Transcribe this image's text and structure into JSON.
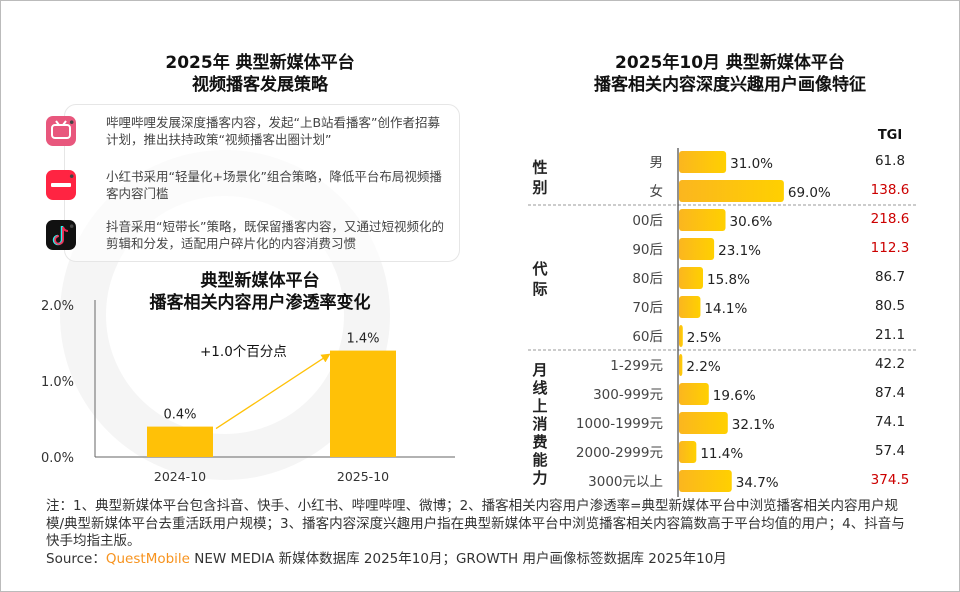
{
  "watermark": "QUEST MOBILE",
  "left": {
    "title_line1": "2025年 典型新媒体平台",
    "title_line2": "视频播客发展策略",
    "items": [
      {
        "logo": "bilibili",
        "logo_text": "bilibili",
        "color": "#e8577d",
        "text": "哔哩哔哩发展深度播客内容，发起“上B站看播客”创作者招募计划，推出扶持政策“视频播客出圈计划”"
      },
      {
        "logo": "xiaohongshu",
        "logo_text": "小红书",
        "color": "#ff2442",
        "text": "小红书采用“轻量化+场景化”组合策略，降低平台布局视频播客内容门槛"
      },
      {
        "logo": "douyin",
        "logo_text": "♪",
        "color": "#111111",
        "text": "抖音采用“短带长”策略，既保留播客内容，又通过短视频化的剪辑和分发，适配用户碎片化的内容消费习惯"
      }
    ]
  },
  "chart_data": [
    {
      "type": "bar",
      "title": "典型新媒体平台\n播客相关内容用户渗透率变化",
      "title_line1": "典型新媒体平台",
      "title_line2": "播客相关内容用户渗透率变化",
      "categories": [
        "2024-10",
        "2025-10"
      ],
      "values": [
        0.4,
        1.4
      ],
      "data_labels": [
        "0.4%",
        "1.4%"
      ],
      "yticks": [
        "0.0%",
        "1.0%",
        "2.0%"
      ],
      "ylim": [
        0,
        2.0
      ],
      "unit": "%",
      "annotation": "+1.0个百分点",
      "bar_color": "#ffc107",
      "grid": false
    },
    {
      "type": "bar",
      "orientation": "horizontal",
      "title_line1": "2025年10月 典型新媒体平台",
      "title_line2": "播客相关内容深度兴趣用户画像特征",
      "tgi_header": "TGI",
      "xlim": [
        0,
        100
      ],
      "bar_color": "#ffc107",
      "highlight_color": "#cc0000",
      "groups": [
        {
          "name": "性别",
          "rows": [
            {
              "label": "男",
              "value": 31.0,
              "tgi": 61.8
            },
            {
              "label": "女",
              "value": 69.0,
              "tgi": 138.6
            }
          ]
        },
        {
          "name": "代际",
          "rows": [
            {
              "label": "00后",
              "value": 30.6,
              "tgi": 218.6
            },
            {
              "label": "90后",
              "value": 23.1,
              "tgi": 112.3
            },
            {
              "label": "80后",
              "value": 15.8,
              "tgi": 86.7
            },
            {
              "label": "70后",
              "value": 14.1,
              "tgi": 80.5
            },
            {
              "label": "60后",
              "value": 2.5,
              "tgi": 21.1
            }
          ]
        },
        {
          "name": "月线上消费能力",
          "rows": [
            {
              "label": "1-299元",
              "value": 2.2,
              "tgi": 42.2
            },
            {
              "label": "300-999元",
              "value": 19.6,
              "tgi": 87.4
            },
            {
              "label": "1000-1999元",
              "value": 32.1,
              "tgi": 74.1
            },
            {
              "label": "2000-2999元",
              "value": 11.4,
              "tgi": 57.4
            },
            {
              "label": "3000元以上",
              "value": 34.7,
              "tgi": 374.5
            }
          ]
        }
      ]
    }
  ],
  "footer": {
    "note": "注：1、典型新媒体平台包含抖音、快手、小红书、哔哩哔哩、微博；2、播客相关内容用户渗透率=典型新媒体平台中浏览播客相关内容用户规模/典型新媒体平台去重活跃用户规模；3、播客内容深度兴趣用户指在典型新媒体平台中浏览播客相关内容篇数高于平台均值的用户；4、抖音与快手均指主版。",
    "source_prefix": "Source：",
    "source_brand": "QuestMobile",
    "source_rest": " NEW MEDIA 新媒体数据库 2025年10月；GROWTH 用户画像标签数据库 2025年10月"
  }
}
